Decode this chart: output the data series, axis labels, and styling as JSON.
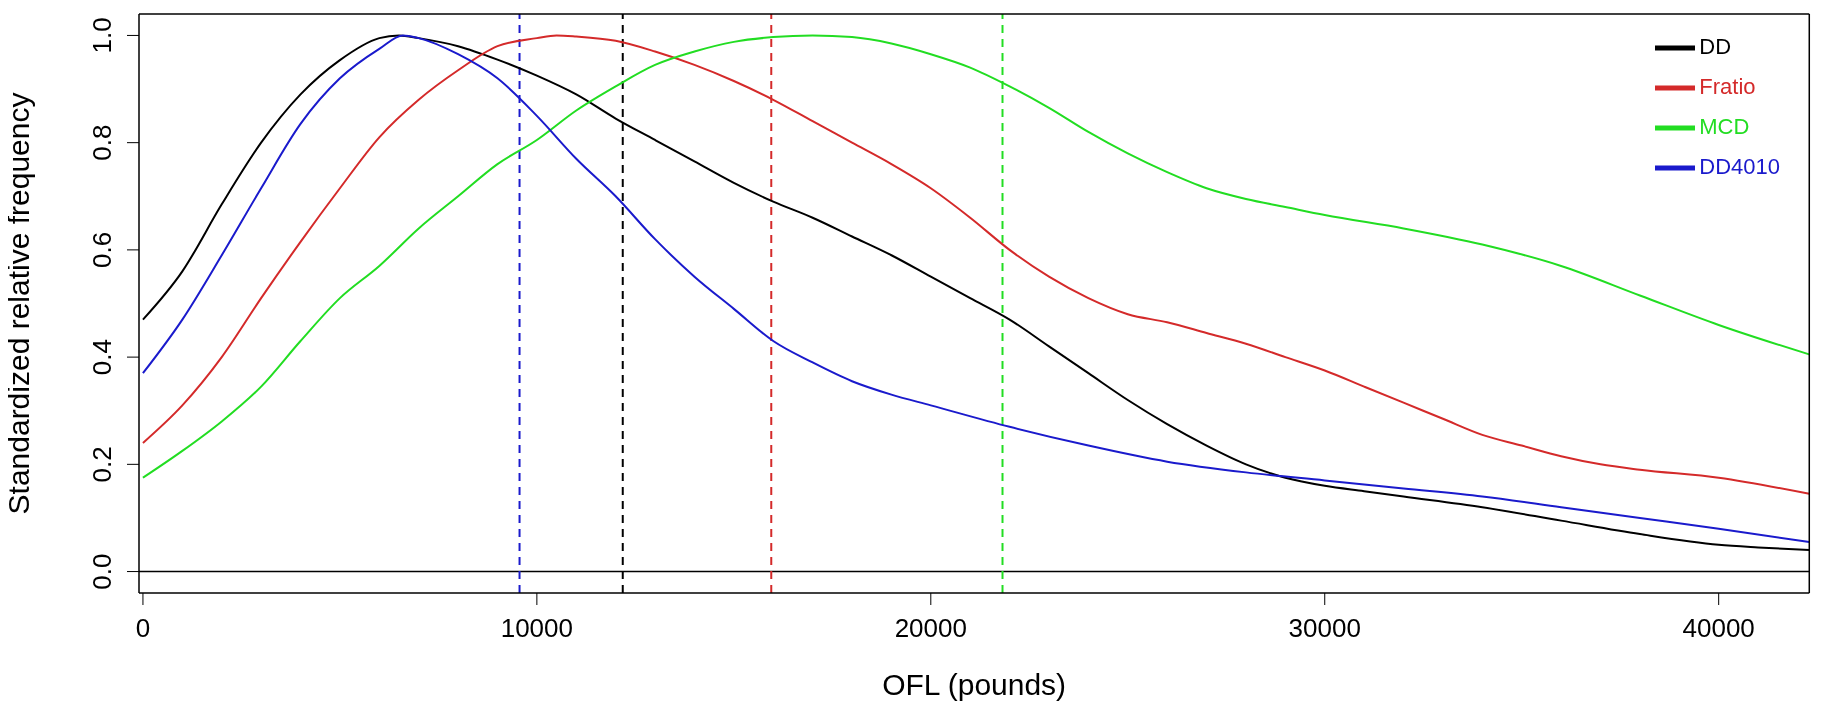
{
  "chart_data": {
    "type": "line",
    "xlabel": "OFL (pounds)",
    "ylabel": "Standardized relative frequency",
    "xlim": [
      -100,
      42300
    ],
    "xticks": [
      0,
      10000,
      20000,
      30000,
      40000
    ],
    "ylim": [
      -0.04,
      1.04
    ],
    "yticks": [
      {
        "value": 0,
        "label": "0.0"
      },
      {
        "value": 0.2,
        "label": "0.2"
      },
      {
        "value": 0.4,
        "label": "0.4"
      },
      {
        "value": 0.6,
        "label": "0.6"
      },
      {
        "value": 0.8,
        "label": "0.8"
      },
      {
        "value": 1,
        "label": "1.0"
      }
    ],
    "legend": "top right",
    "marker": "none",
    "line_style": "solid",
    "series": [
      {
        "name": "DD",
        "color": "#000000",
        "x": [
          0,
          1000,
          2000,
          3000,
          4000,
          5000,
          6000,
          6500,
          7000,
          8000,
          9000,
          10000,
          11000,
          12000,
          13000,
          14000,
          15000,
          16000,
          17000,
          18000,
          19000,
          20000,
          21000,
          22000,
          23000,
          24000,
          25000,
          26000,
          27000,
          28000,
          29000,
          30000,
          31000,
          32000,
          34000,
          36000,
          38000,
          40000,
          41000,
          42300
        ],
        "values": [
          0.47,
          0.56,
          0.685,
          0.8,
          0.89,
          0.954,
          0.995,
          1.0,
          0.995,
          0.98,
          0.955,
          0.925,
          0.89,
          0.845,
          0.805,
          0.765,
          0.725,
          0.69,
          0.66,
          0.625,
          0.59,
          0.55,
          0.51,
          0.47,
          0.42,
          0.37,
          0.32,
          0.275,
          0.235,
          0.2,
          0.175,
          0.16,
          0.15,
          0.14,
          0.12,
          0.095,
          0.07,
          0.05,
          0.045,
          0.04
        ]
      },
      {
        "name": "Fratio",
        "color": "#d42a2a",
        "x": [
          0,
          1000,
          2000,
          3000,
          4000,
          5000,
          6000,
          7000,
          8000,
          9000,
          10000,
          10500,
          11000,
          12000,
          13000,
          14000,
          15000,
          16000,
          17000,
          18000,
          19000,
          20000,
          21000,
          22000,
          23000,
          24000,
          25000,
          26000,
          27000,
          28000,
          29000,
          30000,
          31000,
          32000,
          33000,
          34000,
          35000,
          36000,
          37000,
          38000,
          40000,
          42300
        ],
        "values": [
          0.24,
          0.31,
          0.4,
          0.51,
          0.615,
          0.715,
          0.81,
          0.88,
          0.935,
          0.98,
          0.995,
          1.0,
          0.998,
          0.99,
          0.97,
          0.945,
          0.915,
          0.88,
          0.84,
          0.8,
          0.76,
          0.715,
          0.66,
          0.6,
          0.55,
          0.51,
          0.48,
          0.465,
          0.445,
          0.425,
          0.4,
          0.375,
          0.345,
          0.315,
          0.285,
          0.255,
          0.235,
          0.215,
          0.2,
          0.19,
          0.175,
          0.145
        ]
      },
      {
        "name": "MCD",
        "color": "#22dd22",
        "x": [
          0,
          1000,
          2000,
          3000,
          4000,
          5000,
          6000,
          7000,
          8000,
          9000,
          10000,
          11000,
          12000,
          13000,
          14000,
          15000,
          16000,
          17000,
          18000,
          19000,
          20000,
          21000,
          22000,
          23000,
          24000,
          25000,
          26000,
          27000,
          28000,
          29000,
          30000,
          32000,
          34000,
          36000,
          38000,
          40000,
          42300
        ],
        "values": [
          0.175,
          0.225,
          0.28,
          0.345,
          0.43,
          0.51,
          0.57,
          0.64,
          0.7,
          0.76,
          0.805,
          0.86,
          0.905,
          0.945,
          0.97,
          0.988,
          0.997,
          1.0,
          0.997,
          0.985,
          0.965,
          0.94,
          0.905,
          0.865,
          0.82,
          0.78,
          0.745,
          0.715,
          0.695,
          0.68,
          0.665,
          0.64,
          0.61,
          0.57,
          0.515,
          0.46,
          0.405
        ]
      },
      {
        "name": "DD4010",
        "color": "#1a1acc",
        "x": [
          0,
          1000,
          2000,
          3000,
          4000,
          5000,
          6000,
          6600,
          7000,
          8000,
          9000,
          10000,
          11000,
          12000,
          13000,
          14000,
          15000,
          16000,
          17000,
          18000,
          19000,
          20000,
          22000,
          24000,
          26000,
          28000,
          30000,
          32000,
          34000,
          36000,
          38000,
          40000,
          42300
        ],
        "values": [
          0.37,
          0.47,
          0.59,
          0.715,
          0.835,
          0.92,
          0.975,
          1.0,
          0.995,
          0.965,
          0.92,
          0.85,
          0.77,
          0.7,
          0.62,
          0.55,
          0.49,
          0.43,
          0.39,
          0.355,
          0.33,
          0.31,
          0.27,
          0.235,
          0.205,
          0.185,
          0.17,
          0.155,
          0.14,
          0.12,
          0.1,
          0.08,
          0.055
        ]
      }
    ],
    "ref_lines": [
      {
        "axis": "y",
        "value": 0,
        "color": "#000000",
        "line_style": "solid"
      },
      {
        "axis": "x",
        "value": 9560,
        "color": "#1a1acc",
        "line_style": "dashed"
      },
      {
        "axis": "x",
        "value": 12180,
        "color": "#000000",
        "line_style": "dashed"
      },
      {
        "axis": "x",
        "value": 15950,
        "color": "#d42a2a",
        "line_style": "dashed"
      },
      {
        "axis": "x",
        "value": 21820,
        "color": "#22dd22",
        "line_style": "dashed"
      }
    ]
  }
}
